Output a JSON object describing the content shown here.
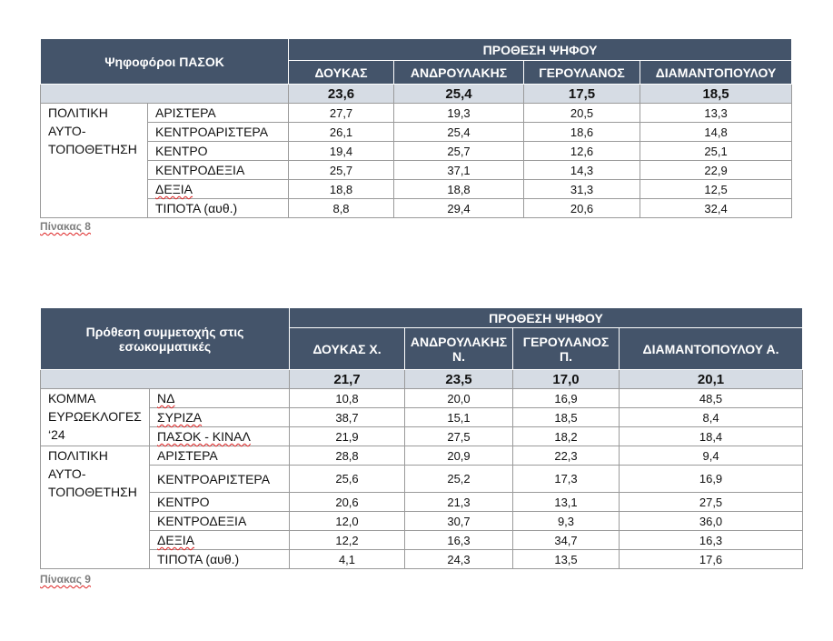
{
  "table8": {
    "left_header": "Ψηφοφόροι ΠΑΣΟΚ",
    "group_header": "ΠΡΟΘΕΣΗ ΨΗΦΟΥ",
    "candidates": [
      "ΔΟΥΚΑΣ",
      "ΑΝΔΡΟΥΛΑΚΗΣ",
      "ΓΕΡΟΥΛΑΝΟΣ",
      "ΔΙΑΜΑΝΤΟΠΟΥΛΟΥ"
    ],
    "totals": [
      "23,6",
      "25,4",
      "17,5",
      "18,5"
    ],
    "group_label": "ΠΟΛΙΤΙΚΗ\nΑΥΤΟ-\nΤΟΠΟΘΕΤΗΣΗ",
    "rows": [
      {
        "label": "ΑΡΙΣΤΕΡΑ",
        "values": [
          "27,7",
          "19,3",
          "20,5",
          "13,3"
        ]
      },
      {
        "label": "ΚΕΝΤΡΟΑΡΙΣΤΕΡΑ",
        "values": [
          "26,1",
          "25,4",
          "18,6",
          "14,8"
        ]
      },
      {
        "label": "ΚΕΝΤΡΟ",
        "values": [
          "19,4",
          "25,7",
          "12,6",
          "25,1"
        ]
      },
      {
        "label": "ΚΕΝΤΡΟΔΕΞΙΑ",
        "values": [
          "25,7",
          "37,1",
          "14,3",
          "22,9"
        ]
      },
      {
        "label": "ΔΕΞΙΑ",
        "values": [
          "18,8",
          "18,8",
          "31,3",
          "12,5"
        ]
      },
      {
        "label": "ΤΙΠΟΤΑ (αυθ.)",
        "values": [
          "8,8",
          "29,4",
          "20,6",
          "32,4"
        ]
      }
    ],
    "caption": "Πίνακας 8"
  },
  "table9": {
    "left_header": "Πρόθεση συμμετοχής στις\nεσωκομματικές",
    "group_header": "ΠΡΟΘΕΣΗ ΨΗΦΟΥ",
    "candidates": [
      "ΔΟΥΚΑΣ Χ.",
      "ΑΝΔΡΟΥΛΑΚΗΣ\nΝ.",
      "ΓΕΡΟΥΛΑΝΟΣ\nΠ.",
      "ΔΙΑΜΑΝΤΟΠΟΥΛΟΥ Α."
    ],
    "totals": [
      "21,7",
      "23,5",
      "17,0",
      "20,1"
    ],
    "group1_label": "ΚΟΜΜΑ\nΕΥΡΩΕΚΛΟΓΕΣ\n‘24",
    "group1_rows": [
      {
        "label": "ΝΔ",
        "values": [
          "10,8",
          "20,0",
          "16,9",
          "48,5"
        ]
      },
      {
        "label": "ΣΥΡΙΖΑ",
        "values": [
          "38,7",
          "15,1",
          "18,5",
          "8,4"
        ]
      },
      {
        "label": "ΠΑΣΟΚ - ΚΙΝΑΛ",
        "values": [
          "21,9",
          "27,5",
          "18,2",
          "18,4"
        ]
      }
    ],
    "group2_label": "ΠΟΛΙΤΙΚΗ\nΑΥΤΟ-\nΤΟΠΟΘΕΤΗΣΗ",
    "group2_rows": [
      {
        "label": "ΑΡΙΣΤΕΡΑ",
        "values": [
          "28,8",
          "20,9",
          "22,3",
          "9,4"
        ]
      },
      {
        "label": "ΚΕΝΤΡΟΑΡΙΣΤΕΡΑ",
        "values": [
          "25,6",
          "25,2",
          "17,3",
          "16,9"
        ]
      },
      {
        "label": "ΚΕΝΤΡΟ",
        "values": [
          "20,6",
          "21,3",
          "13,1",
          "27,5"
        ]
      },
      {
        "label": "ΚΕΝΤΡΟΔΕΞΙΑ",
        "values": [
          "12,0",
          "30,7",
          "9,3",
          "36,0"
        ]
      },
      {
        "label": "ΔΕΞΙΑ",
        "values": [
          "12,2",
          "16,3",
          "34,7",
          "16,3"
        ]
      },
      {
        "label": "ΤΙΠΟΤΑ (αυθ.)",
        "values": [
          "4,1",
          "24,3",
          "13,5",
          "17,6"
        ]
      }
    ],
    "caption": "Πίνακας 9"
  }
}
